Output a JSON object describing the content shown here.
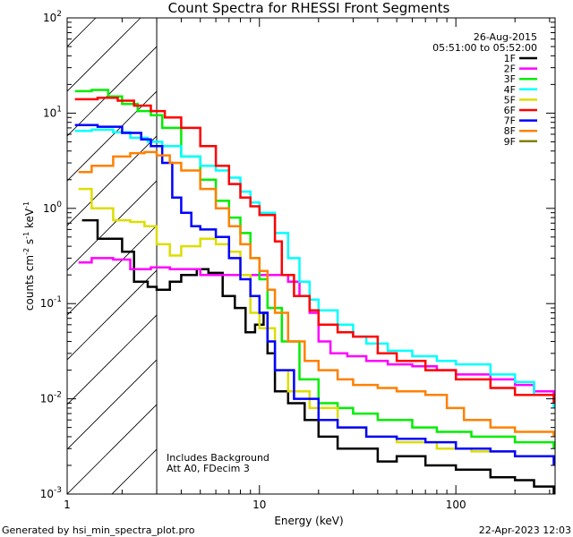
{
  "chart_data": {
    "type": "line",
    "title": "Count Spectra for RHESSI Front Segments",
    "xlabel": "Energy (keV)",
    "ylabel": "counts cm^-2 s^-1 keV^-1",
    "xscale": "log",
    "yscale": "log",
    "xlim": [
      1.05,
      320
    ],
    "ylim": [
      0.001,
      100
    ],
    "x_ticks": [
      {
        "value": 1,
        "label": "1"
      },
      {
        "value": 10,
        "label": "10"
      },
      {
        "value": 100,
        "label": "100"
      }
    ],
    "y_ticks": [
      {
        "value": 100,
        "base": "10",
        "exp": "2"
      },
      {
        "value": 10,
        "base": "10",
        "exp": "1"
      },
      {
        "value": 1,
        "base": "10",
        "exp": "0"
      },
      {
        "value": 0.1,
        "base": "10",
        "exp": "-1"
      },
      {
        "value": 0.01,
        "base": "10",
        "exp": "-2"
      },
      {
        "value": 0.001,
        "base": "10",
        "exp": "-3"
      }
    ],
    "ylabel_parts": {
      "p1": "counts cm",
      "e1": "-2",
      "p2": " s",
      "e2": "-1",
      "p3": " keV",
      "e3": "-1"
    },
    "date": "26-Aug-2015",
    "time_range": "05:51:00 to 05:52:00",
    "annotation_lines": [
      "Includes Background",
      "Att A0, FDecim 3"
    ],
    "attenuator_edge_kev": 3,
    "series": [
      {
        "name": "1F",
        "color": "#000000",
        "points": [
          [
            1.25,
            0.75
          ],
          [
            1.5,
            0.48
          ],
          [
            2.0,
            0.35
          ],
          [
            2.3,
            0.17
          ],
          [
            2.7,
            0.15
          ],
          [
            3.0,
            0.14
          ],
          [
            3.5,
            0.17
          ],
          [
            4.0,
            0.2
          ],
          [
            4.8,
            0.23
          ],
          [
            5.5,
            0.21
          ],
          [
            6.5,
            0.12
          ],
          [
            7.5,
            0.09
          ],
          [
            8.5,
            0.05
          ],
          [
            9.5,
            0.06
          ],
          [
            10.5,
            0.08
          ],
          [
            11,
            0.03
          ],
          [
            12,
            0.012
          ],
          [
            14,
            0.009
          ],
          [
            17,
            0.006
          ],
          [
            20,
            0.004
          ],
          [
            25,
            0.003
          ],
          [
            30,
            0.003
          ],
          [
            40,
            0.0022
          ],
          [
            50,
            0.0025
          ],
          [
            70,
            0.002
          ],
          [
            100,
            0.0018
          ],
          [
            150,
            0.0015
          ],
          [
            200,
            0.0014
          ],
          [
            250,
            0.0012
          ],
          [
            315,
            0.001
          ]
        ]
      },
      {
        "name": "2F",
        "color": "#ff00ff",
        "points": [
          [
            1.2,
            0.27
          ],
          [
            1.4,
            0.3
          ],
          [
            1.8,
            0.29
          ],
          [
            2.2,
            0.23
          ],
          [
            2.8,
            0.24
          ],
          [
            3.5,
            0.23
          ],
          [
            5,
            0.2
          ],
          [
            7,
            0.2
          ],
          [
            10,
            0.2
          ],
          [
            14,
            0.17
          ],
          [
            16,
            0.12
          ],
          [
            18,
            0.08
          ],
          [
            20,
            0.04
          ],
          [
            23,
            0.03
          ],
          [
            28,
            0.028
          ],
          [
            35,
            0.025
          ],
          [
            45,
            0.023
          ],
          [
            60,
            0.022
          ],
          [
            80,
            0.02
          ],
          [
            100,
            0.018
          ],
          [
            150,
            0.016
          ],
          [
            200,
            0.014
          ],
          [
            250,
            0.012
          ],
          [
            315,
            0.009
          ]
        ]
      },
      {
        "name": "3F",
        "color": "#00ee00",
        "points": [
          [
            1.15,
            17
          ],
          [
            1.4,
            17.5
          ],
          [
            1.7,
            15
          ],
          [
            2.0,
            12.5
          ],
          [
            2.4,
            10.5
          ],
          [
            2.8,
            9.5
          ],
          [
            3.2,
            7
          ],
          [
            4,
            3.5
          ],
          [
            5,
            2
          ],
          [
            6,
            1.2
          ],
          [
            7,
            0.8
          ],
          [
            8,
            0.55
          ],
          [
            9,
            0.3
          ],
          [
            10,
            0.18
          ],
          [
            11,
            0.09
          ],
          [
            13,
            0.04
          ],
          [
            16,
            0.016
          ],
          [
            20,
            0.009
          ],
          [
            25,
            0.008
          ],
          [
            30,
            0.007
          ],
          [
            40,
            0.006
          ],
          [
            60,
            0.005
          ],
          [
            80,
            0.0045
          ],
          [
            120,
            0.004
          ],
          [
            200,
            0.0035
          ],
          [
            315,
            0.003
          ]
        ]
      },
      {
        "name": "4F",
        "color": "#00ffff",
        "points": [
          [
            1.15,
            6.5
          ],
          [
            1.4,
            6.7
          ],
          [
            1.8,
            6.3
          ],
          [
            2.2,
            5.5
          ],
          [
            2.7,
            5
          ],
          [
            3.2,
            4.5
          ],
          [
            4,
            3.5
          ],
          [
            5,
            2.8
          ],
          [
            6,
            2.5
          ],
          [
            7,
            2.1
          ],
          [
            8,
            1.5
          ],
          [
            9,
            1.15
          ],
          [
            10,
            0.9
          ],
          [
            12,
            0.55
          ],
          [
            14,
            0.3
          ],
          [
            16,
            0.17
          ],
          [
            18,
            0.11
          ],
          [
            20,
            0.085
          ],
          [
            25,
            0.06
          ],
          [
            30,
            0.045
          ],
          [
            35,
            0.038
          ],
          [
            45,
            0.032
          ],
          [
            60,
            0.028
          ],
          [
            80,
            0.025
          ],
          [
            100,
            0.023
          ],
          [
            150,
            0.018
          ],
          [
            200,
            0.015
          ],
          [
            250,
            0.011
          ],
          [
            315,
            0.008
          ]
        ]
      },
      {
        "name": "5F",
        "color": "#dddd00",
        "points": [
          [
            1.2,
            1.6
          ],
          [
            1.4,
            1.0
          ],
          [
            1.8,
            0.75
          ],
          [
            2.2,
            0.72
          ],
          [
            2.6,
            0.65
          ],
          [
            3.0,
            0.42
          ],
          [
            3.5,
            0.32
          ],
          [
            4,
            0.4
          ],
          [
            5,
            0.48
          ],
          [
            6,
            0.42
          ],
          [
            7,
            0.35
          ],
          [
            8,
            0.2
          ],
          [
            9,
            0.08
          ],
          [
            10,
            0.055
          ],
          [
            12,
            0.02
          ],
          [
            14,
            0.012
          ],
          [
            18,
            0.008
          ],
          [
            25,
            0.005
          ],
          [
            35,
            0.004
          ],
          [
            50,
            0.0035
          ],
          [
            80,
            0.003
          ],
          [
            120,
            0.0028
          ],
          [
            200,
            0.0025
          ],
          [
            315,
            0.0022
          ]
        ]
      },
      {
        "name": "6F",
        "color": "#ff0000",
        "points": [
          [
            1.15,
            14
          ],
          [
            1.5,
            14.5
          ],
          [
            1.9,
            13.5
          ],
          [
            2.3,
            12
          ],
          [
            2.8,
            10.5
          ],
          [
            3.3,
            9
          ],
          [
            4,
            7
          ],
          [
            5,
            4.5
          ],
          [
            6,
            2.8
          ],
          [
            7,
            1.8
          ],
          [
            8,
            1.3
          ],
          [
            9,
            1.05
          ],
          [
            10,
            0.85
          ],
          [
            12,
            0.45
          ],
          [
            13,
            0.2
          ],
          [
            15,
            0.12
          ],
          [
            18,
            0.085
          ],
          [
            20,
            0.06
          ],
          [
            25,
            0.05
          ],
          [
            30,
            0.045
          ],
          [
            40,
            0.03
          ],
          [
            50,
            0.025
          ],
          [
            70,
            0.02
          ],
          [
            100,
            0.016
          ],
          [
            150,
            0.013
          ],
          [
            200,
            0.011
          ],
          [
            315,
            0.009
          ]
        ]
      },
      {
        "name": "7F",
        "color": "#0000ff",
        "points": [
          [
            1.15,
            7.5
          ],
          [
            1.5,
            7.2
          ],
          [
            2.0,
            6.2
          ],
          [
            2.5,
            5.3
          ],
          [
            2.8,
            4.5
          ],
          [
            3.2,
            3
          ],
          [
            3.6,
            1.3
          ],
          [
            4,
            0.9
          ],
          [
            4.5,
            0.65
          ],
          [
            5,
            0.6
          ],
          [
            6,
            0.5
          ],
          [
            7,
            0.3
          ],
          [
            8,
            0.18
          ],
          [
            9,
            0.12
          ],
          [
            10,
            0.08
          ],
          [
            11,
            0.04
          ],
          [
            12,
            0.02
          ],
          [
            15,
            0.01
          ],
          [
            20,
            0.006
          ],
          [
            25,
            0.005
          ],
          [
            35,
            0.004
          ],
          [
            50,
            0.0038
          ],
          [
            70,
            0.0035
          ],
          [
            100,
            0.003
          ],
          [
            150,
            0.0028
          ],
          [
            200,
            0.0025
          ],
          [
            315,
            0.002
          ]
        ]
      },
      {
        "name": "8F",
        "color": "#ff8000",
        "points": [
          [
            1.2,
            2.4
          ],
          [
            1.4,
            2.8
          ],
          [
            1.8,
            3.5
          ],
          [
            2.2,
            3.8
          ],
          [
            2.6,
            3.9
          ],
          [
            3.0,
            3.6
          ],
          [
            3.5,
            3.0
          ],
          [
            4,
            2.5
          ],
          [
            5,
            1.6
          ],
          [
            6,
            1.0
          ],
          [
            7,
            0.65
          ],
          [
            8,
            0.42
          ],
          [
            9,
            0.3
          ],
          [
            10,
            0.22
          ],
          [
            11,
            0.14
          ],
          [
            12,
            0.08
          ],
          [
            14,
            0.04
          ],
          [
            17,
            0.025
          ],
          [
            20,
            0.02
          ],
          [
            25,
            0.016
          ],
          [
            30,
            0.014
          ],
          [
            40,
            0.013
          ],
          [
            50,
            0.012
          ],
          [
            70,
            0.011
          ],
          [
            90,
            0.008
          ],
          [
            110,
            0.006
          ],
          [
            150,
            0.005
          ],
          [
            200,
            0.0045
          ],
          [
            315,
            0.004
          ]
        ]
      },
      {
        "name": "9F",
        "color": "#808000",
        "points": []
      }
    ]
  },
  "footer": {
    "left": "Generated by hsi_min_spectra_plot.pro",
    "right": "22-Apr-2023 12:03"
  }
}
